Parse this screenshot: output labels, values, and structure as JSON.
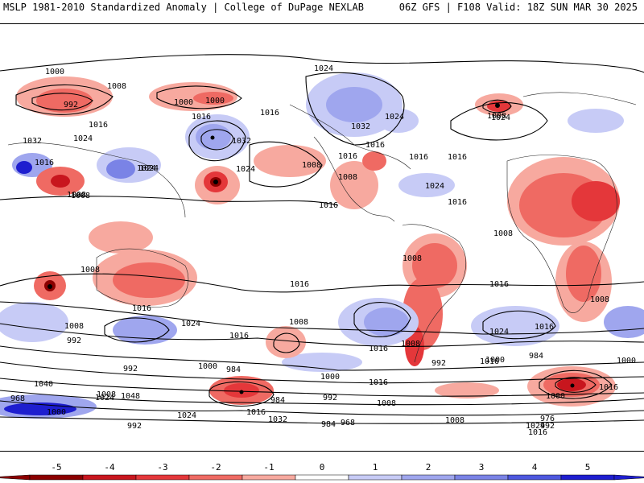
{
  "header": {
    "title_left": "MSLP 1981-2010 Standardized Anomaly | College of DuPage NEXLAB",
    "title_right": "06Z GFS | F108 Valid: 18Z SUN MAR 30 2025"
  },
  "map": {
    "contour_labels": [
      "1000",
      "992",
      "1008",
      "1000",
      "1016",
      "1024",
      "1016",
      "1024",
      "1032",
      "1024",
      "1016",
      "1000",
      "1008",
      "1032",
      "1024",
      "1016",
      "1008",
      "1024",
      "1032",
      "1016",
      "1024",
      "1016",
      "1008",
      "1016",
      "1008",
      "1024",
      "1016",
      "1016",
      "1016",
      "1008",
      "1008",
      "1008",
      "1008",
      "1016",
      "1016",
      "1008",
      "1016",
      "1024",
      "1016",
      "1008",
      "992",
      "1008",
      "1016",
      "1016",
      "1024",
      "1008",
      "1016",
      "1000",
      "984",
      "992",
      "984",
      "1000",
      "992",
      "1000",
      "1016",
      "1008",
      "1040",
      "1024",
      "1048",
      "968",
      "1000",
      "984",
      "992",
      "1000",
      "1008",
      "1024",
      "1016",
      "1008",
      "1032",
      "992",
      "984",
      "968",
      "976",
      "992",
      "1000",
      "1016",
      "1024",
      "1016",
      "1024"
    ],
    "highs_lows": {
      "low_color": "#dc143c",
      "high_color": "#3b42d9"
    }
  },
  "colorbar": {
    "ticks": [
      "-5",
      "-4",
      "-3",
      "-2",
      "-1",
      "0",
      "1",
      "2",
      "3",
      "4",
      "5"
    ],
    "colors": [
      "#8b0000",
      "#c8161e",
      "#e4373a",
      "#ef6a63",
      "#f7a99f",
      "#ffffff",
      "#c7cbf6",
      "#9fa6ee",
      "#7a83e6",
      "#4d57de",
      "#1e1ecf"
    ]
  }
}
